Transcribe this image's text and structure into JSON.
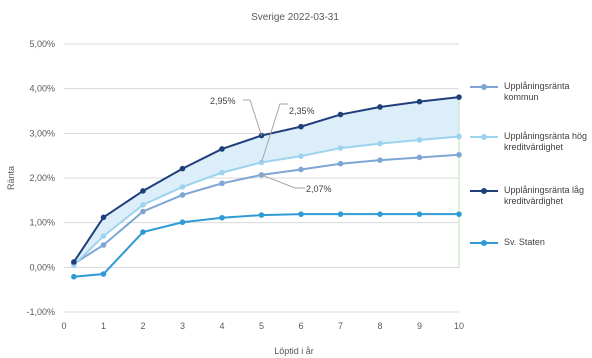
{
  "chart_data": {
    "type": "line",
    "title": "Sverige 2022-03-31",
    "xlabel": "Löptid i år",
    "ylabel": "Ränta",
    "xlim": [
      0,
      10
    ],
    "ylim": [
      -1,
      5
    ],
    "xticks": [
      "0",
      "1",
      "2",
      "3",
      "4",
      "5",
      "6",
      "7",
      "8",
      "9",
      "10"
    ],
    "yticks": [
      "-1,00%",
      "0,00%",
      "1,00%",
      "2,00%",
      "3,00%",
      "4,00%",
      "5,00%"
    ],
    "grid": "horizontal",
    "legend_position": "right",
    "shaded_band": "between Upplåningsränta hög kreditvärdighet and Upplåningsränta låg kreditvärdighet",
    "x": [
      0.25,
      1,
      2,
      3,
      4,
      5,
      6,
      7,
      8,
      9,
      10
    ],
    "series": [
      {
        "name": "Upplåningsränta kommun",
        "color": "#7EA6D4",
        "values": [
          0.08,
          0.5,
          1.25,
          1.62,
          1.88,
          2.07,
          2.19,
          2.32,
          2.4,
          2.46,
          2.52
        ]
      },
      {
        "name": "Upplåningsränta hög kreditvärdighet",
        "color": "#9DD3EE",
        "values": [
          0.05,
          0.7,
          1.4,
          1.8,
          2.12,
          2.35,
          2.49,
          2.67,
          2.77,
          2.85,
          2.93
        ]
      },
      {
        "name": "Upplåningsränta låg kreditvärdighet",
        "color": "#1F3F7A",
        "values": [
          0.12,
          1.12,
          1.71,
          2.21,
          2.65,
          2.95,
          3.15,
          3.42,
          3.59,
          3.71,
          3.81
        ]
      },
      {
        "name": "Sv. Staten",
        "color": "#2E9BD6",
        "values": [
          -0.21,
          -0.15,
          0.79,
          1.01,
          1.11,
          1.17,
          1.19,
          1.19,
          1.19,
          1.19,
          1.19
        ]
      }
    ],
    "annotations": [
      {
        "text": "2,95%",
        "x": 5,
        "y": 2.95
      },
      {
        "text": "2,35%",
        "x": 5,
        "y": 2.35
      },
      {
        "text": "2,07%",
        "x": 5,
        "y": 2.07
      }
    ]
  }
}
